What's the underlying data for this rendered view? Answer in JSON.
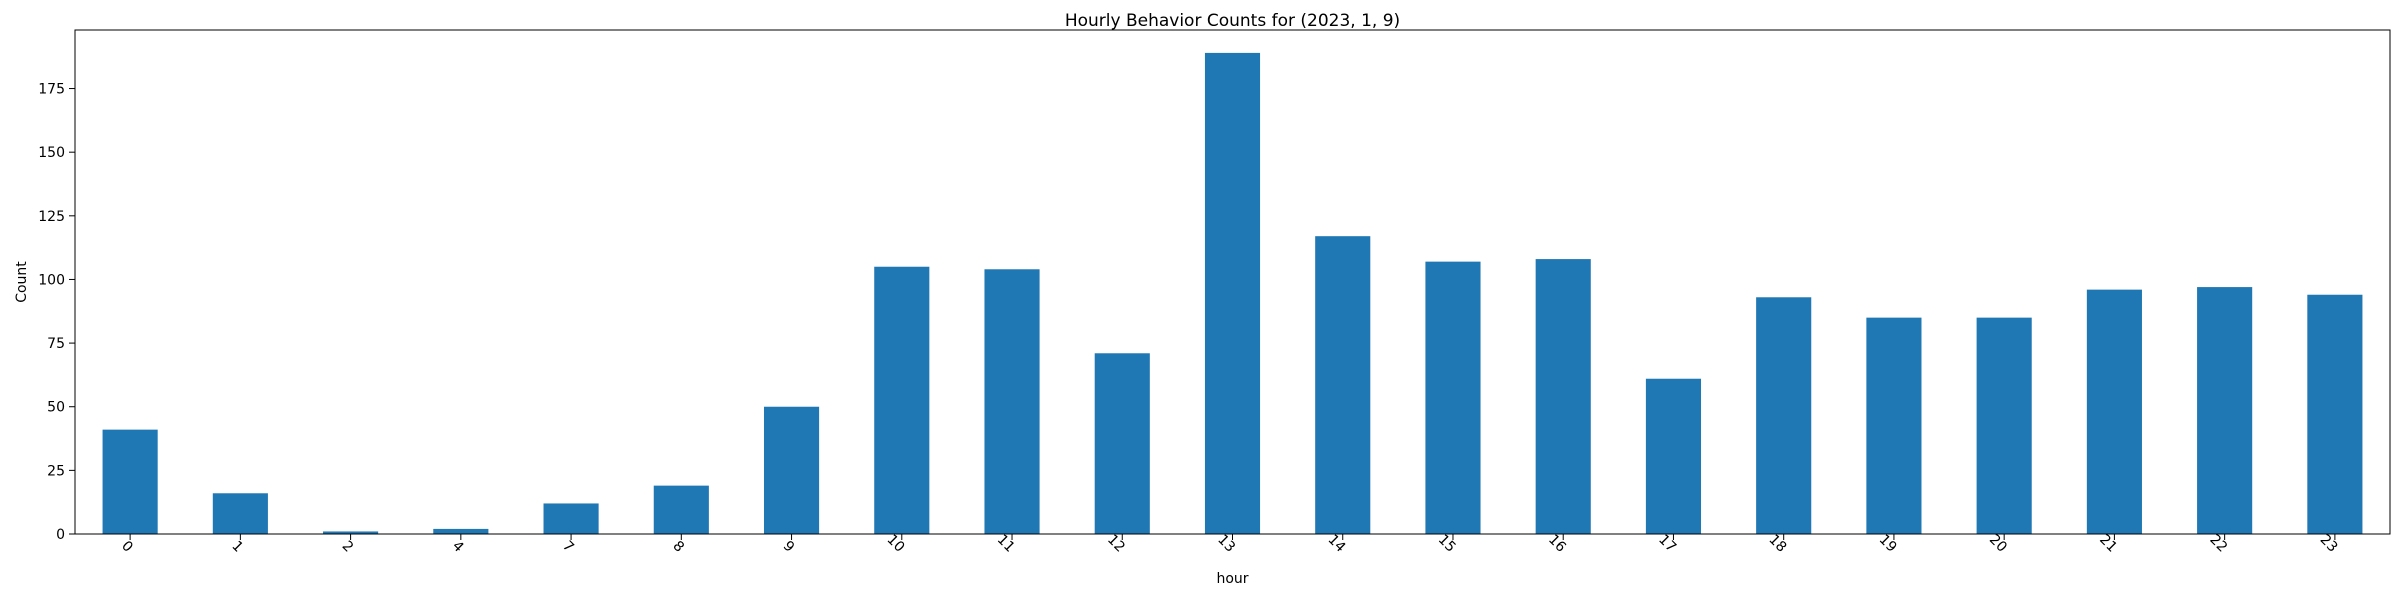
{
  "chart_data": {
    "type": "bar",
    "title": "Hourly Behavior Counts for (2023, 1, 9)",
    "xlabel": "hour",
    "ylabel": "Count",
    "categories": [
      "0",
      "1",
      "2",
      "4",
      "7",
      "8",
      "9",
      "10",
      "11",
      "12",
      "13",
      "14",
      "15",
      "16",
      "17",
      "18",
      "19",
      "20",
      "21",
      "22",
      "23"
    ],
    "values": [
      41,
      16,
      1,
      2,
      12,
      19,
      50,
      105,
      104,
      71,
      189,
      117,
      107,
      108,
      61,
      93,
      85,
      85,
      96,
      97,
      94
    ],
    "ylim": [
      0,
      198
    ],
    "yticks": [
      0,
      25,
      50,
      75,
      100,
      125,
      150,
      175
    ],
    "grid": false,
    "legend": "none",
    "bar_color": "#1f77b4"
  }
}
